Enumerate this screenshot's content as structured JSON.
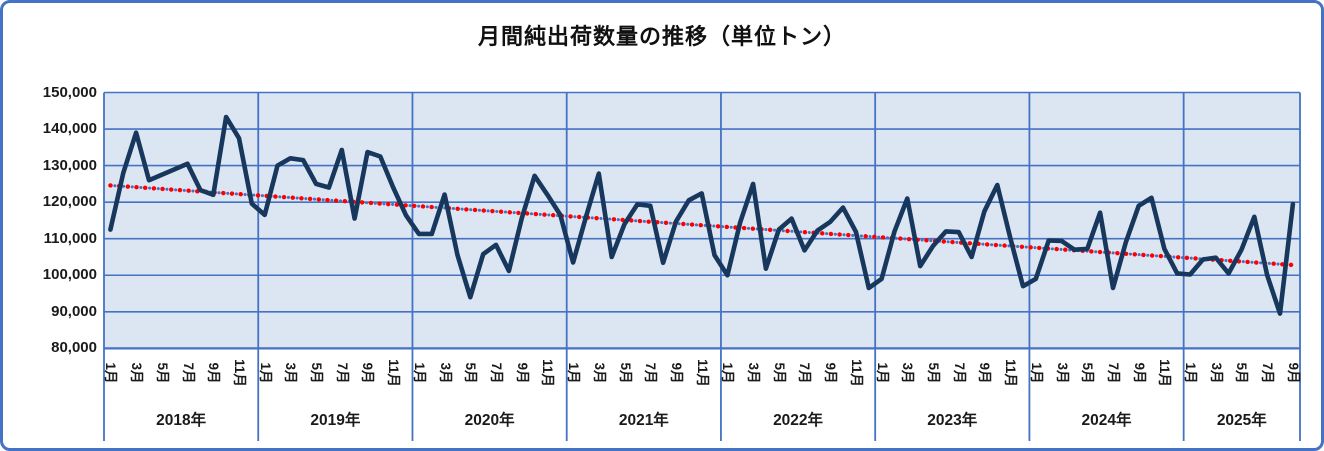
{
  "chart_data": {
    "type": "line",
    "title": "月間純出荷数量の推移（単位トン）",
    "ylabel": "",
    "xlabel": "",
    "unit": "トン",
    "ylim": [
      80000,
      150000
    ],
    "grid": true,
    "y_tick_labels": [
      "150,000",
      "140,000",
      "130,000",
      "120,000",
      "110,000",
      "100,000",
      "90,000",
      "80,000"
    ],
    "month_labels": [
      "1月",
      "3月",
      "5月",
      "7月",
      "9月",
      "11月"
    ],
    "years": [
      {
        "label": "2018年",
        "values": [
          112500,
          128000,
          139000,
          126000,
          127500,
          129000,
          130500,
          123300,
          122000,
          143300,
          137500,
          119600
        ]
      },
      {
        "label": "2019年",
        "values": [
          116500,
          130000,
          132000,
          131500,
          125000,
          124000,
          134300,
          115500,
          133700,
          132500,
          124000,
          116400
        ]
      },
      {
        "label": "2020年",
        "values": [
          111300,
          111300,
          122100,
          105500,
          94000,
          105800,
          108300,
          101200,
          115500,
          127200,
          122000,
          116500
        ]
      },
      {
        "label": "2021年",
        "values": [
          103500,
          116000,
          127800,
          105000,
          114000,
          119400,
          119000,
          103400,
          114700,
          120500,
          122400,
          105500
        ]
      },
      {
        "label": "2022年",
        "values": [
          100000,
          114500,
          125000,
          101800,
          112500,
          115500,
          106800,
          112200,
          114600,
          118500,
          111900,
          96500
        ]
      },
      {
        "label": "2023年",
        "values": [
          99000,
          112000,
          121000,
          102500,
          108000,
          112000,
          111800,
          105000,
          117500,
          124700,
          110400,
          97000
        ]
      },
      {
        "label": "2024年",
        "values": [
          99000,
          109500,
          109400,
          107000,
          107200,
          117100,
          96500,
          109000,
          119000,
          121200,
          107200,
          100500
        ]
      },
      {
        "label": "2025年",
        "values": [
          100200,
          104300,
          104800,
          100500,
          107000,
          116000,
          100000,
          89500,
          119500
        ]
      }
    ],
    "series_name": "月間純出荷数量",
    "trendline": {
      "equation": "y = -236.59x + 124806",
      "slope": -236.59,
      "intercept": 124806,
      "style": "dotted",
      "colors": [
        "#ff0000",
        "#4472c4"
      ]
    },
    "colors": {
      "line": "#17375d",
      "plot_background": "#dce6f2",
      "grid_and_border": "#4472c4",
      "trend_red": "#ff0000",
      "trend_blue": "#4472c4",
      "text": "#111111"
    }
  }
}
